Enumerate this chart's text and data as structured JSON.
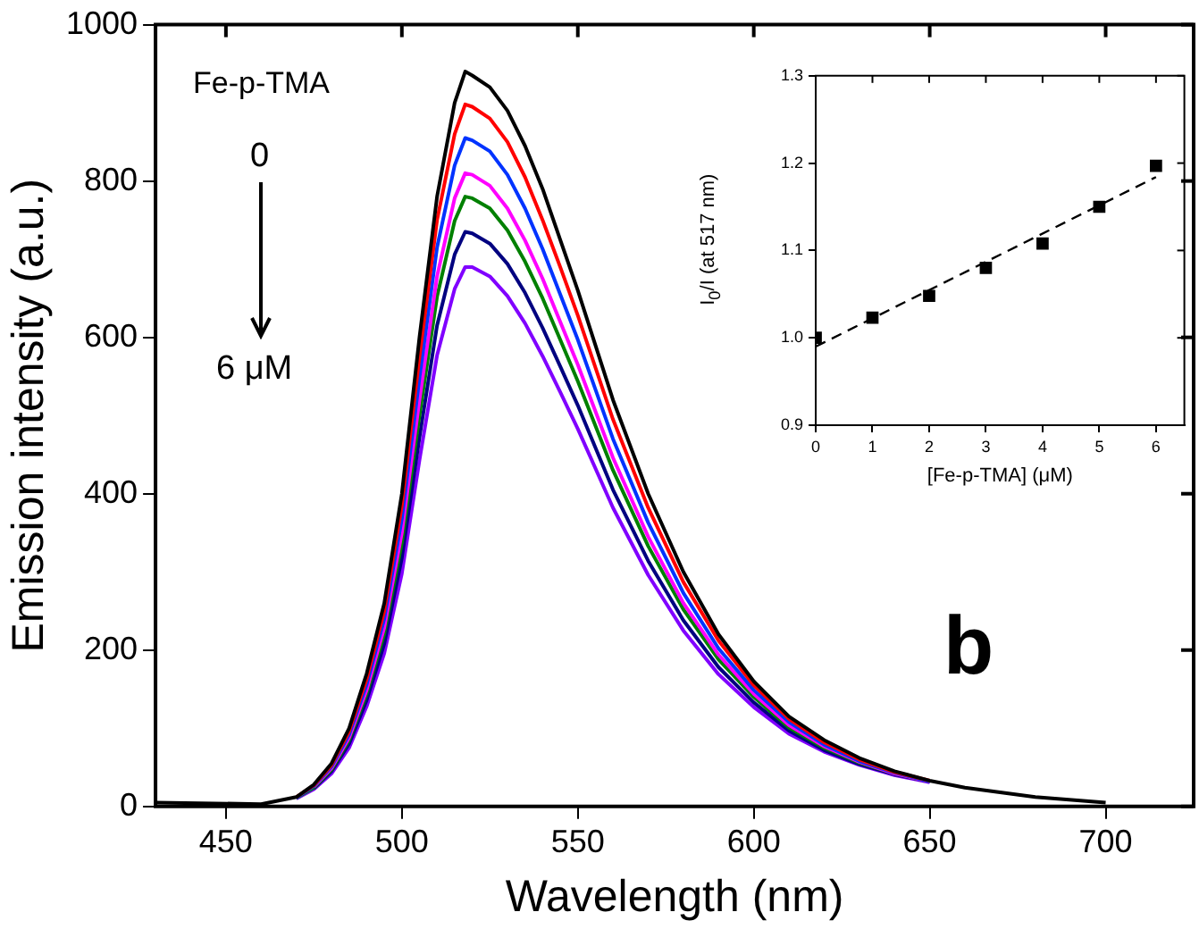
{
  "chart_data": [
    {
      "type": "line",
      "xlabel": "Wavelength (nm)",
      "ylabel": "Emission intensity (a.u.)",
      "marker": "none",
      "line_style": "solid",
      "annotations": [
        "Fe-p-TMA",
        "0",
        "6 μM",
        "b"
      ],
      "x": [
        430,
        460,
        470,
        475,
        480,
        485,
        490,
        495,
        500,
        505,
        510,
        515,
        518,
        520,
        525,
        530,
        535,
        540,
        545,
        550,
        560,
        570,
        580,
        590,
        600,
        610,
        620,
        630,
        640,
        650,
        660,
        680,
        700
      ],
      "xlim": [
        430,
        725
      ],
      "xticks": [
        450,
        500,
        550,
        600,
        650,
        700
      ],
      "ylim": [
        0,
        1000
      ],
      "yticks": [
        0,
        200,
        400,
        600,
        800,
        1000
      ],
      "series": [
        {
          "color": "#000000",
          "values": [
            5,
            3,
            12,
            28,
            55,
            100,
            170,
            260,
            400,
            600,
            780,
            900,
            940,
            935,
            920,
            890,
            845,
            790,
            725,
            660,
            520,
            400,
            300,
            220,
            160,
            115,
            85,
            62,
            45,
            33,
            24,
            12,
            5
          ]
        },
        {
          "color": "#ff0000",
          "values": [
            null,
            null,
            12,
            27,
            53,
            96,
            163,
            250,
            385,
            575,
            750,
            860,
            898,
            895,
            880,
            850,
            805,
            750,
            690,
            628,
            495,
            382,
            287,
            212,
            155,
            112,
            82,
            60,
            44,
            33,
            null,
            null,
            null
          ]
        },
        {
          "color": "#0033ff",
          "values": [
            null,
            null,
            11,
            26,
            51,
            92,
            156,
            240,
            368,
            548,
            715,
            820,
            855,
            852,
            838,
            808,
            765,
            713,
            655,
            597,
            470,
            363,
            273,
            202,
            149,
            108,
            79,
            58,
            43,
            32,
            null,
            null,
            null
          ]
        },
        {
          "color": "#ff00ff",
          "values": [
            null,
            null,
            null,
            25,
            49,
            88,
            149,
            229,
            350,
            520,
            678,
            778,
            810,
            808,
            794,
            765,
            724,
            675,
            620,
            565,
            446,
            345,
            260,
            194,
            144,
            104,
            77,
            57,
            42,
            32,
            null,
            null,
            null
          ]
        },
        {
          "color": "#008000",
          "values": [
            null,
            null,
            11,
            24,
            47,
            85,
            144,
            221,
            337,
            500,
            652,
            749,
            780,
            778,
            765,
            737,
            697,
            650,
            597,
            544,
            430,
            333,
            252,
            188,
            140,
            101,
            75,
            56,
            42,
            32,
            null,
            null,
            null
          ]
        },
        {
          "color": "#000080",
          "values": [
            null,
            null,
            null,
            23,
            45,
            80,
            136,
            208,
            318,
            472,
            615,
            706,
            735,
            733,
            720,
            694,
            657,
            612,
            563,
            513,
            405,
            314,
            238,
            178,
            133,
            97,
            72,
            54,
            41,
            32,
            null,
            null,
            null
          ]
        },
        {
          "color": "#8000ff",
          "values": [
            null,
            null,
            10,
            22,
            42,
            75,
            128,
            196,
            298,
            443,
            577,
            662,
            690,
            690,
            678,
            653,
            618,
            576,
            530,
            483,
            382,
            296,
            225,
            169,
            127,
            93,
            70,
            53,
            40,
            31,
            null,
            null,
            null
          ]
        }
      ]
    },
    {
      "type": "scatter",
      "xlabel": "[Fe-p-TMA] (μM)",
      "ylabel": "I$_{0}$/I (at 517 nm)",
      "marker": "square",
      "xlim": [
        0,
        6.5
      ],
      "xticks": [
        0,
        1,
        2,
        3,
        4,
        5,
        6
      ],
      "ylim": [
        0.9,
        1.3
      ],
      "yticks": [
        0.9,
        {
          "value": 1,
          "label": "1.0"
        },
        1.1,
        1.2,
        1.3
      ],
      "series": [
        {
          "type": "scatter",
          "color": "#000000",
          "x": [
            0,
            1,
            2,
            3,
            4,
            5,
            6
          ],
          "values": [
            1.0,
            1.023,
            1.048,
            1.08,
            1.108,
            1.15,
            1.197
          ]
        },
        {
          "type": "line",
          "color": "#000000",
          "line_style": "dashed",
          "marker": "none",
          "x": [
            0,
            6
          ],
          "values": [
            0.99,
            1.184
          ]
        }
      ]
    }
  ]
}
